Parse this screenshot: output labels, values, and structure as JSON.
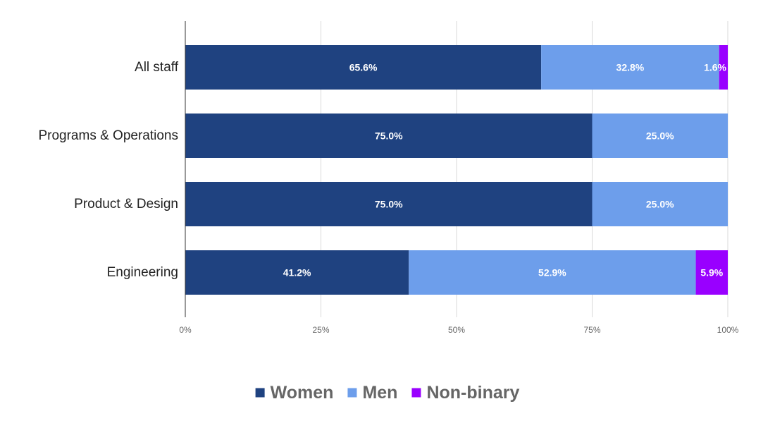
{
  "chart_data": {
    "type": "bar",
    "orientation": "horizontal",
    "stacked": "percent",
    "categories": [
      "All staff",
      "Programs & Operations",
      "Product & Design",
      "Engineering"
    ],
    "series": [
      {
        "name": "Women",
        "color": "#1f4280",
        "values": [
          65.6,
          75.0,
          75.0,
          41.2
        ],
        "labels": [
          "65.6%",
          "75.0%",
          "75.0%",
          "41.2%"
        ]
      },
      {
        "name": "Men",
        "color": "#6d9eeb",
        "values": [
          32.8,
          25.0,
          25.0,
          52.9
        ],
        "labels": [
          "32.8%",
          "25.0%",
          "25.0%",
          "52.9%"
        ]
      },
      {
        "name": "Non-binary",
        "color": "#9900ff",
        "values": [
          1.6,
          0,
          0,
          5.9
        ],
        "labels": [
          "1.6%",
          "",
          "",
          "5.9%"
        ]
      }
    ],
    "x_ticks": [
      "0%",
      "25%",
      "50%",
      "75%",
      "100%"
    ],
    "xlim": [
      0,
      100
    ],
    "grid": true,
    "legend_position": "bottom"
  }
}
